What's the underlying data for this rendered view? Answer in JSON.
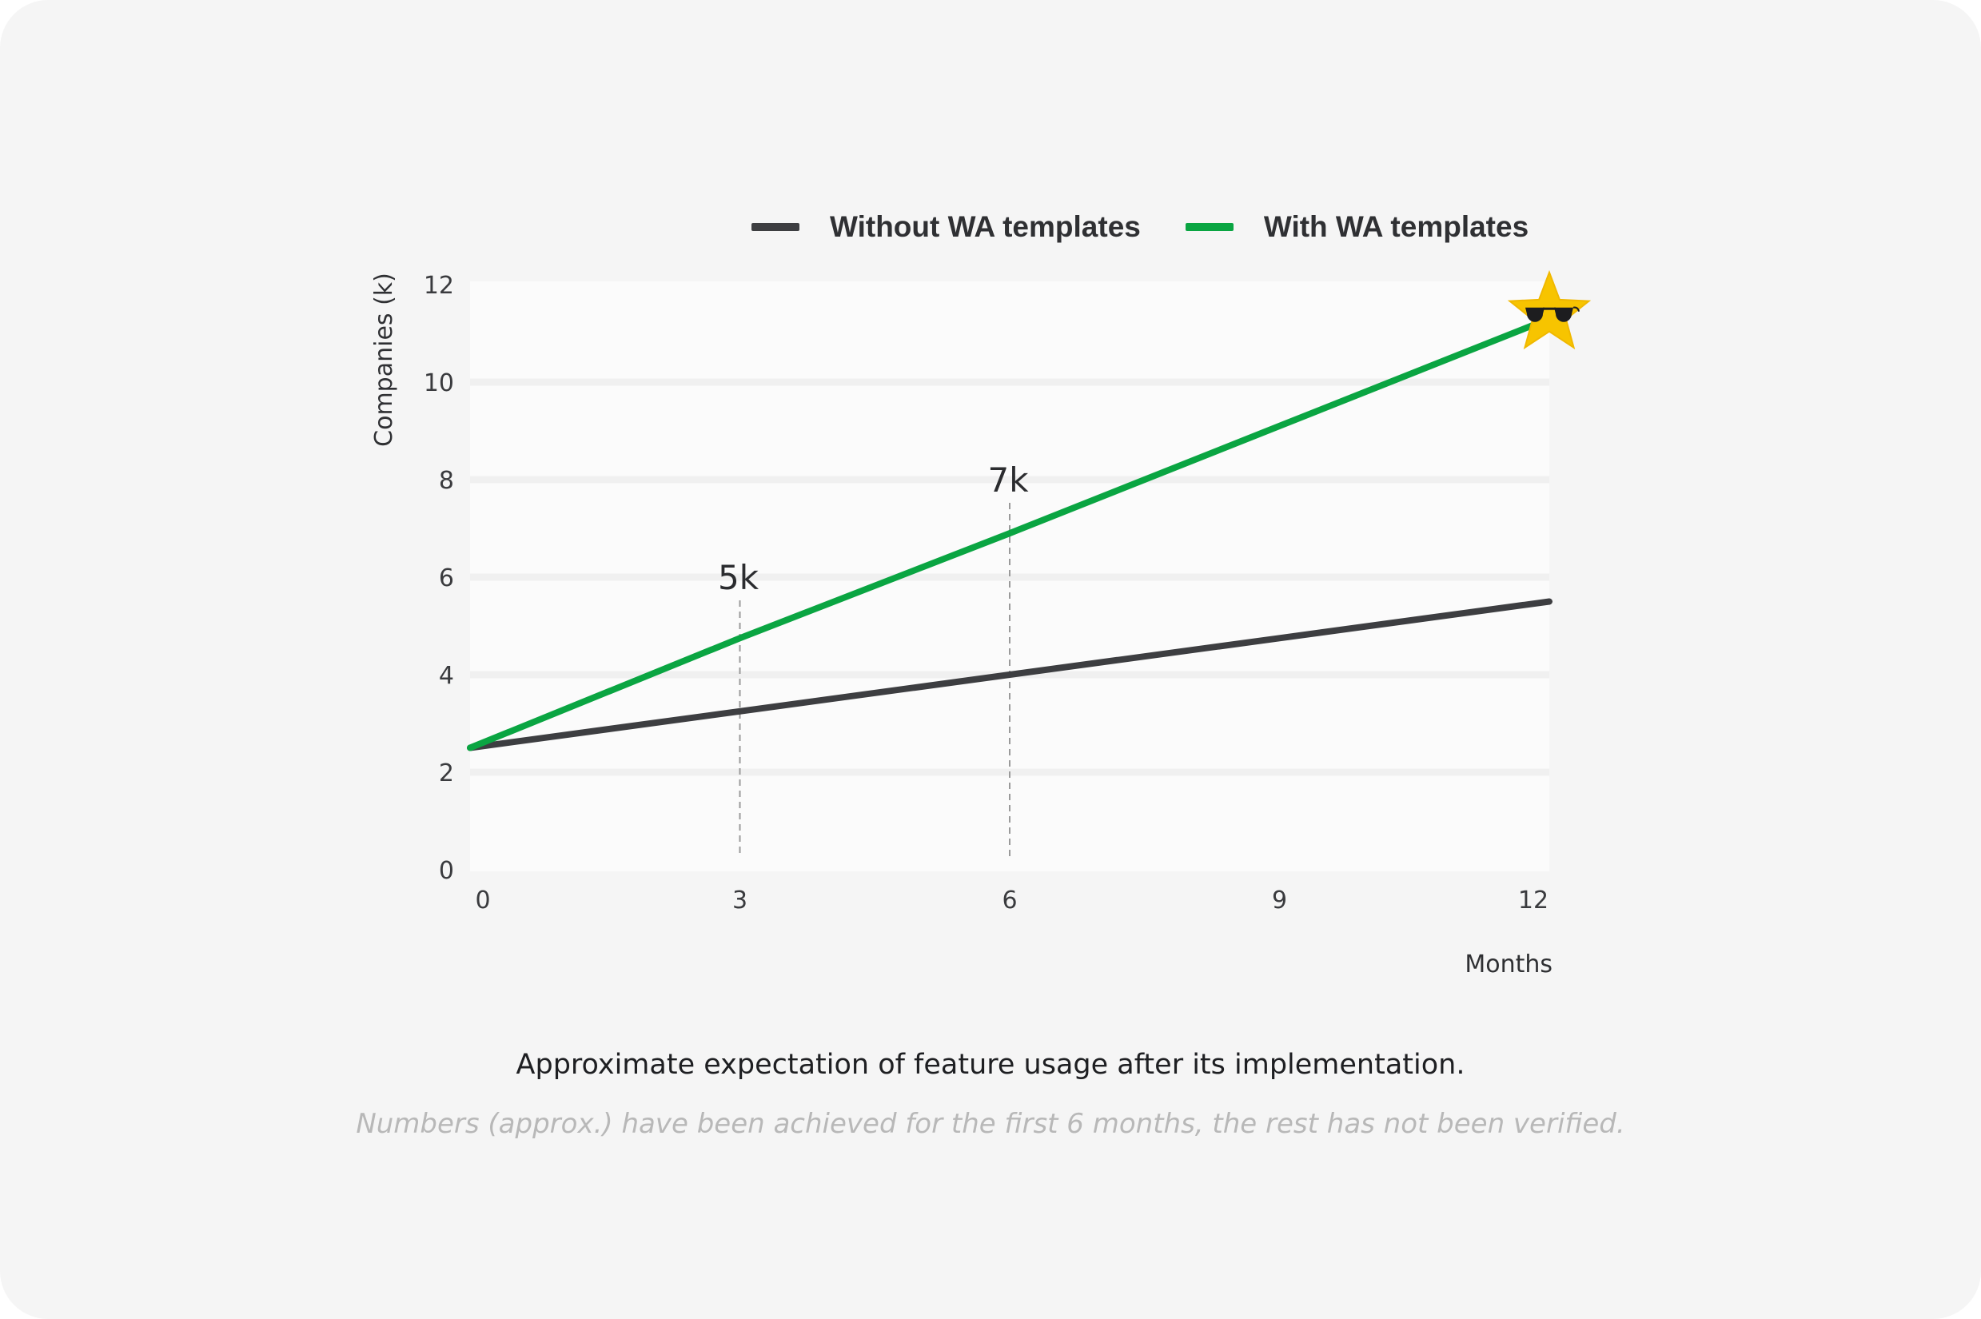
{
  "chart_data": {
    "type": "line",
    "x": [
      0,
      3,
      6,
      9,
      12
    ],
    "series": [
      {
        "name": "Without WA templates",
        "color": "#3d3e41",
        "values": [
          2.5,
          3.25,
          4.0,
          4.75,
          5.5
        ]
      },
      {
        "name": "With WA templates",
        "color": "#0aa542",
        "values": [
          2.5,
          4.75,
          6.9,
          9.1,
          11.3
        ]
      }
    ],
    "xlabel": "Months",
    "ylabel": "Companies (k)",
    "xlim": [
      0,
      12
    ],
    "ylim": [
      0,
      12
    ],
    "xticks": [
      "0",
      "3",
      "6",
      "9",
      "12"
    ],
    "yticks": [
      "0",
      "2",
      "4",
      "6",
      "8",
      "10",
      "12"
    ],
    "grid": true,
    "legend_position": "top-right",
    "annotations": [
      {
        "x": 3,
        "y": 5,
        "text": "5k"
      },
      {
        "x": 6,
        "y": 7,
        "text": "7k"
      }
    ],
    "end_marker": {
      "icon": "star-sunglasses-icon",
      "color": "#f7c400"
    }
  },
  "caption": "Approximate expectation of feature usage after its implementation.",
  "note": "Numbers (approx.) have been achieved for the first 6 months, the rest has not been verified."
}
